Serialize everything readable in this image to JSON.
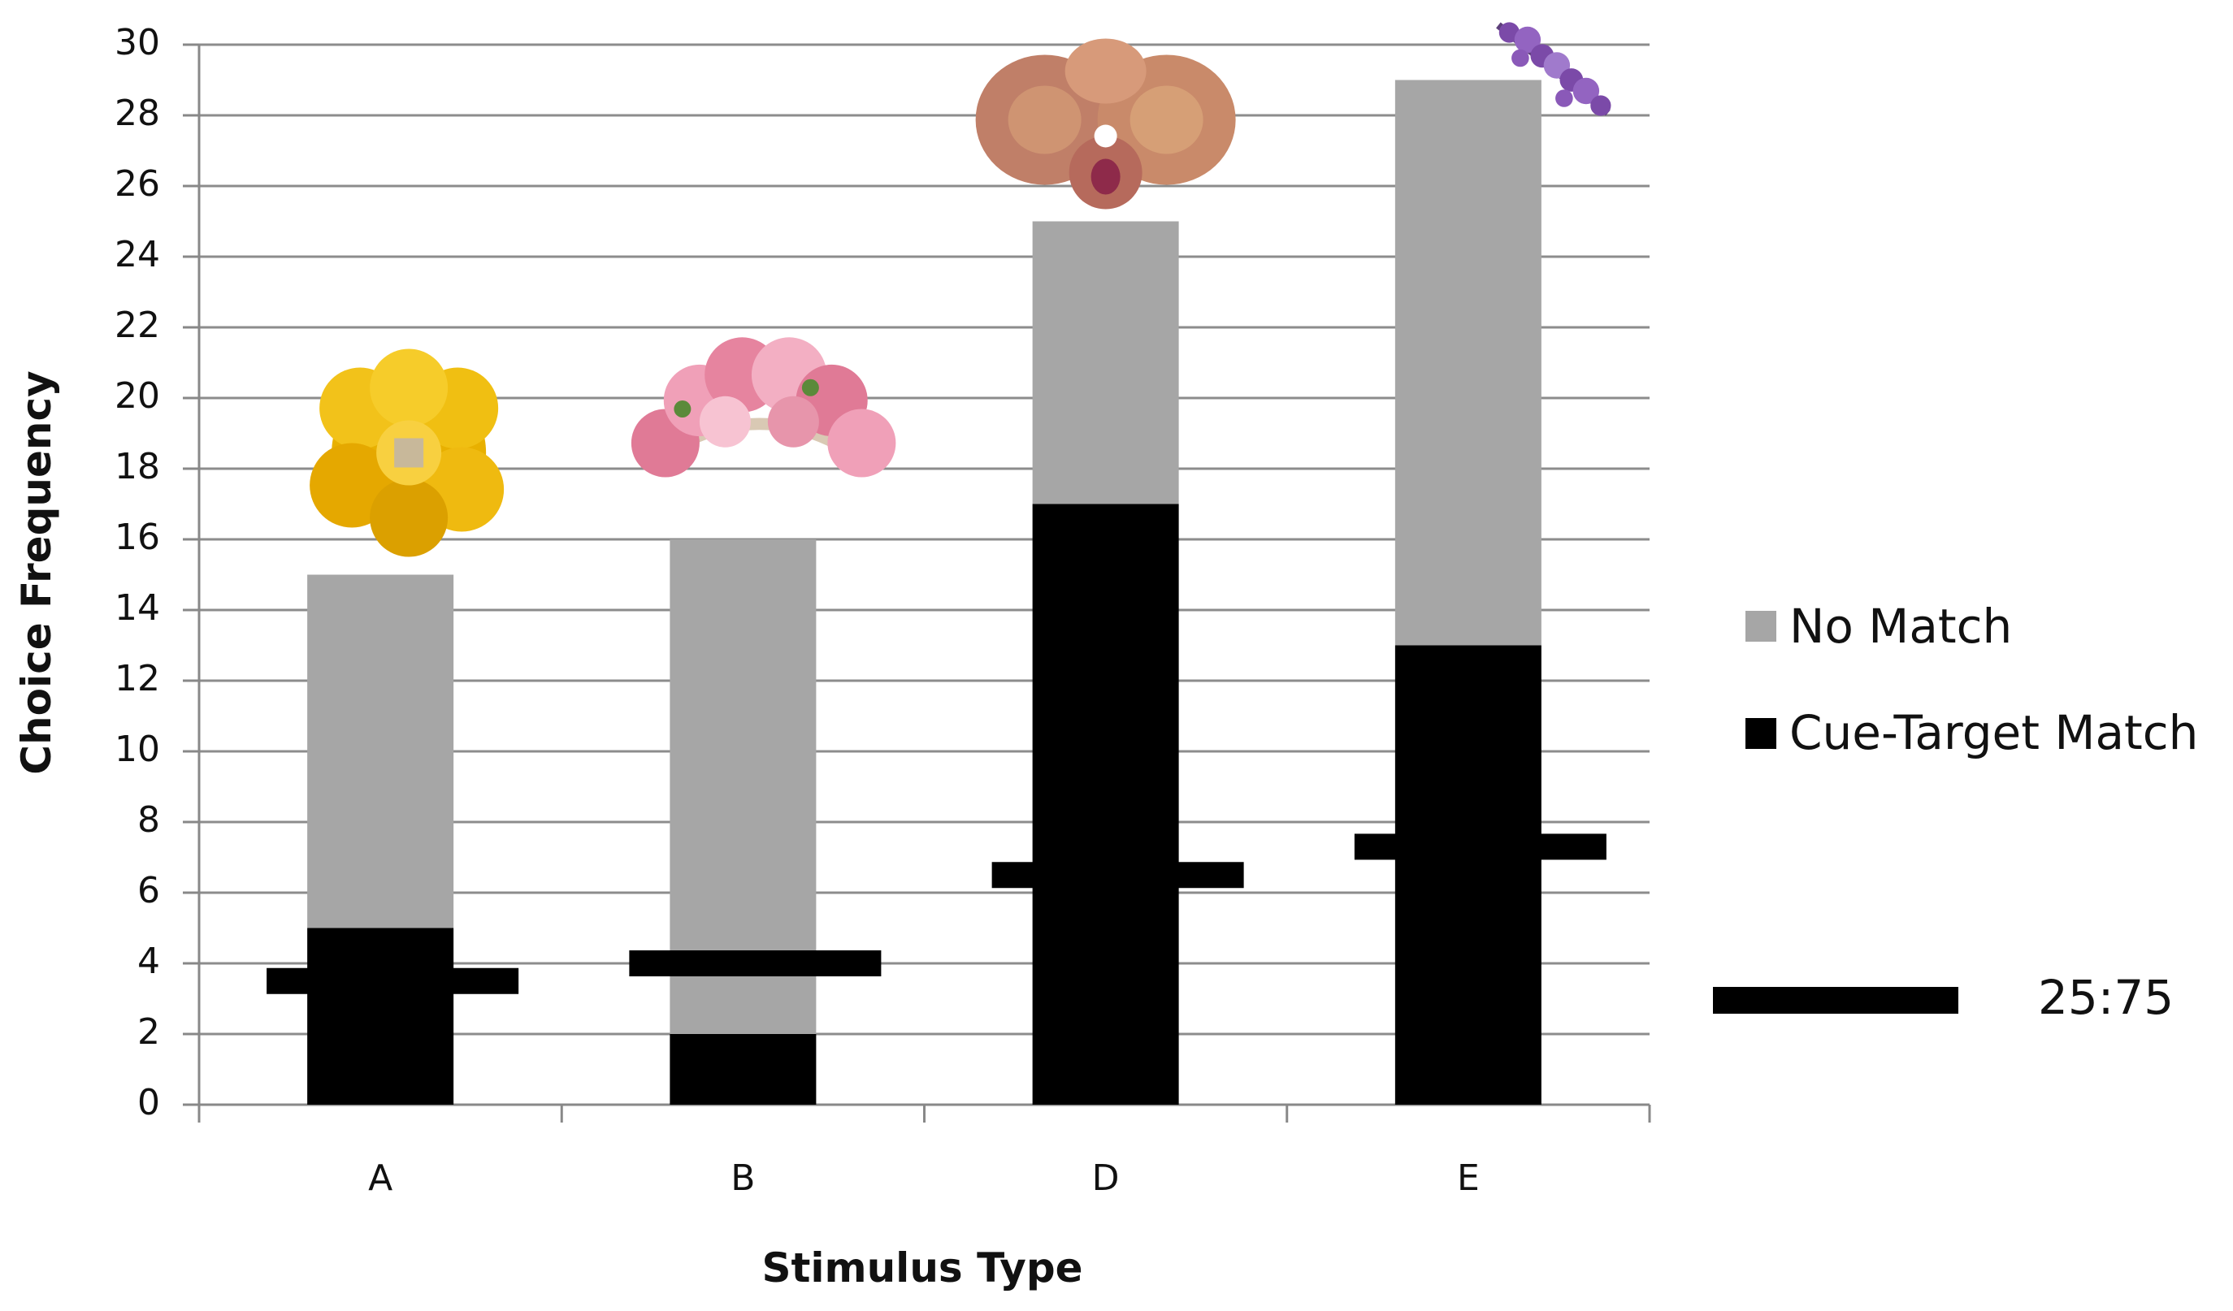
{
  "chart_data": {
    "type": "bar",
    "stacked": true,
    "categories": [
      "A",
      "B",
      "D",
      "E"
    ],
    "series": [
      {
        "name": "Cue-Target Match",
        "values": [
          5,
          2,
          17,
          13
        ],
        "color": "#000000"
      },
      {
        "name": "No Match",
        "values": [
          10,
          14,
          8,
          16
        ],
        "color": "#a6a6a6"
      }
    ],
    "ratio_markers": {
      "name": "25:75",
      "values": [
        3.5,
        4,
        6.5,
        7.3
      ],
      "color": "#000000"
    },
    "xlabel": "Stimulus Type",
    "ylabel": "Choice Frequency",
    "ylim": [
      0,
      30
    ],
    "ytick_step": 2,
    "grid": true,
    "legend_position": "right",
    "category_icons": [
      "yellow-flower-icon",
      "pink-flower-cluster-icon",
      "orchid-icon",
      "purple-flower-spike-icon"
    ]
  }
}
